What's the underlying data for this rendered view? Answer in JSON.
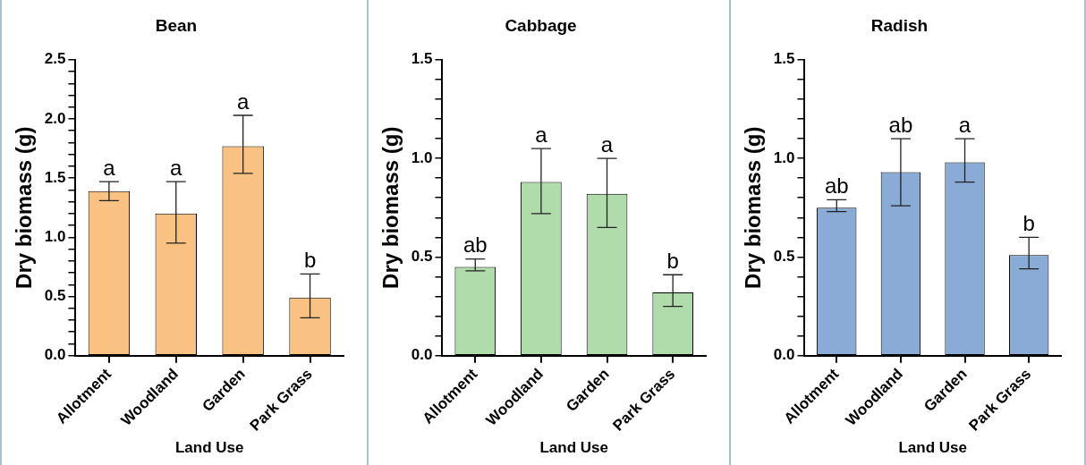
{
  "chart_data": [
    {
      "type": "bar",
      "title": "Bean",
      "xlabel": "Land Use",
      "ylabel": "Dry biomass (g)",
      "categories": [
        "Allotment",
        "Woodland",
        "Garden",
        "Park Grass"
      ],
      "values": [
        1.39,
        1.2,
        1.77,
        0.49
      ],
      "errors": [
        [
          1.31,
          1.47
        ],
        [
          0.95,
          1.47
        ],
        [
          1.54,
          2.03
        ],
        [
          0.32,
          0.69
        ]
      ],
      "color": "#f9c283",
      "ylim": [
        0,
        2.5
      ],
      "yticks": [
        {
          "value": 0,
          "label": "0.0"
        },
        {
          "value": 0.1,
          "label": null
        },
        {
          "value": 0.2,
          "label": null
        },
        {
          "value": 0.3,
          "label": null
        },
        {
          "value": 0.4,
          "label": null
        },
        0.5,
        {
          "value": 0.6,
          "label": null
        },
        {
          "value": 0.7,
          "label": null
        },
        {
          "value": 0.8,
          "label": null
        },
        {
          "value": 0.9,
          "label": null
        },
        {
          "value": 1,
          "label": "1.0"
        },
        {
          "value": 1.1,
          "label": null
        },
        {
          "value": 1.2,
          "label": null
        },
        {
          "value": 1.3,
          "label": null
        },
        {
          "value": 1.4,
          "label": null
        },
        1.5,
        {
          "value": 1.6,
          "label": null
        },
        {
          "value": 1.7,
          "label": null
        },
        {
          "value": 1.8,
          "label": null
        },
        {
          "value": 1.9,
          "label": null
        },
        {
          "value": 2,
          "label": "2.0"
        },
        {
          "value": 2.1,
          "label": null
        },
        {
          "value": 2.2,
          "label": null
        },
        {
          "value": 2.3,
          "label": null
        },
        {
          "value": 2.4,
          "label": null
        },
        2.5
      ],
      "annotations": [
        {
          "text": "a",
          "x": "Allotment",
          "y": 1.47
        },
        {
          "text": "a",
          "x": "Woodland",
          "y": 1.47
        },
        {
          "text": "a",
          "x": "Garden",
          "y": 2.03
        },
        {
          "text": "b",
          "x": "Park Grass",
          "y": 0.69
        }
      ],
      "grid": false,
      "legend": false
    },
    {
      "type": "bar",
      "title": "Cabbage",
      "xlabel": "Land Use",
      "ylabel": "Dry biomass (g)",
      "categories": [
        "Allotment",
        "Woodland",
        "Garden",
        "Park Grass"
      ],
      "values": [
        0.45,
        0.88,
        0.82,
        0.32
      ],
      "errors": [
        [
          0.43,
          0.49
        ],
        [
          0.72,
          1.05
        ],
        [
          0.65,
          1.0
        ],
        [
          0.25,
          0.41
        ]
      ],
      "color": "#b0dbab",
      "ylim": [
        0,
        1.5
      ],
      "yticks": [
        {
          "value": 0,
          "label": "0.0"
        },
        {
          "value": 0.1,
          "label": null
        },
        {
          "value": 0.2,
          "label": null
        },
        {
          "value": 0.3,
          "label": null
        },
        {
          "value": 0.4,
          "label": null
        },
        0.5,
        {
          "value": 0.6,
          "label": null
        },
        {
          "value": 0.7,
          "label": null
        },
        {
          "value": 0.8,
          "label": null
        },
        {
          "value": 0.9,
          "label": null
        },
        {
          "value": 1,
          "label": "1.0"
        },
        {
          "value": 1.1,
          "label": null
        },
        {
          "value": 1.2,
          "label": null
        },
        {
          "value": 1.3,
          "label": null
        },
        {
          "value": 1.4,
          "label": null
        },
        1.5
      ],
      "annotations": [
        {
          "text": "ab",
          "x": "Allotment",
          "y": 0.49
        },
        {
          "text": "a",
          "x": "Woodland",
          "y": 1.05
        },
        {
          "text": "a",
          "x": "Garden",
          "y": 1.0
        },
        {
          "text": "b",
          "x": "Park Grass",
          "y": 0.41
        }
      ],
      "grid": false,
      "legend": false
    },
    {
      "type": "bar",
      "title": "Radish",
      "xlabel": "Land Use",
      "ylabel": "Dry biomass (g)",
      "categories": [
        "Allotment",
        "Woodland",
        "Garden",
        "Park Grass"
      ],
      "values": [
        0.75,
        0.93,
        0.98,
        0.51
      ],
      "errors": [
        [
          0.73,
          0.79
        ],
        [
          0.76,
          1.1
        ],
        [
          0.88,
          1.1
        ],
        [
          0.44,
          0.6
        ]
      ],
      "color": "#8aabd6",
      "ylim": [
        0,
        1.5
      ],
      "yticks": [
        {
          "value": 0,
          "label": "0.0"
        },
        {
          "value": 0.1,
          "label": null
        },
        {
          "value": 0.2,
          "label": null
        },
        {
          "value": 0.3,
          "label": null
        },
        {
          "value": 0.4,
          "label": null
        },
        0.5,
        {
          "value": 0.6,
          "label": null
        },
        {
          "value": 0.7,
          "label": null
        },
        {
          "value": 0.8,
          "label": null
        },
        {
          "value": 0.9,
          "label": null
        },
        {
          "value": 1,
          "label": "1.0"
        },
        {
          "value": 1.1,
          "label": null
        },
        {
          "value": 1.2,
          "label": null
        },
        {
          "value": 1.3,
          "label": null
        },
        {
          "value": 1.4,
          "label": null
        },
        1.5
      ],
      "annotations": [
        {
          "text": "ab",
          "x": "Allotment",
          "y": 0.79
        },
        {
          "text": "ab",
          "x": "Woodland",
          "y": 1.1
        },
        {
          "text": "a",
          "x": "Garden",
          "y": 1.1
        },
        {
          "text": "b",
          "x": "Park Grass",
          "y": 0.6
        }
      ],
      "grid": false,
      "legend": false
    }
  ]
}
